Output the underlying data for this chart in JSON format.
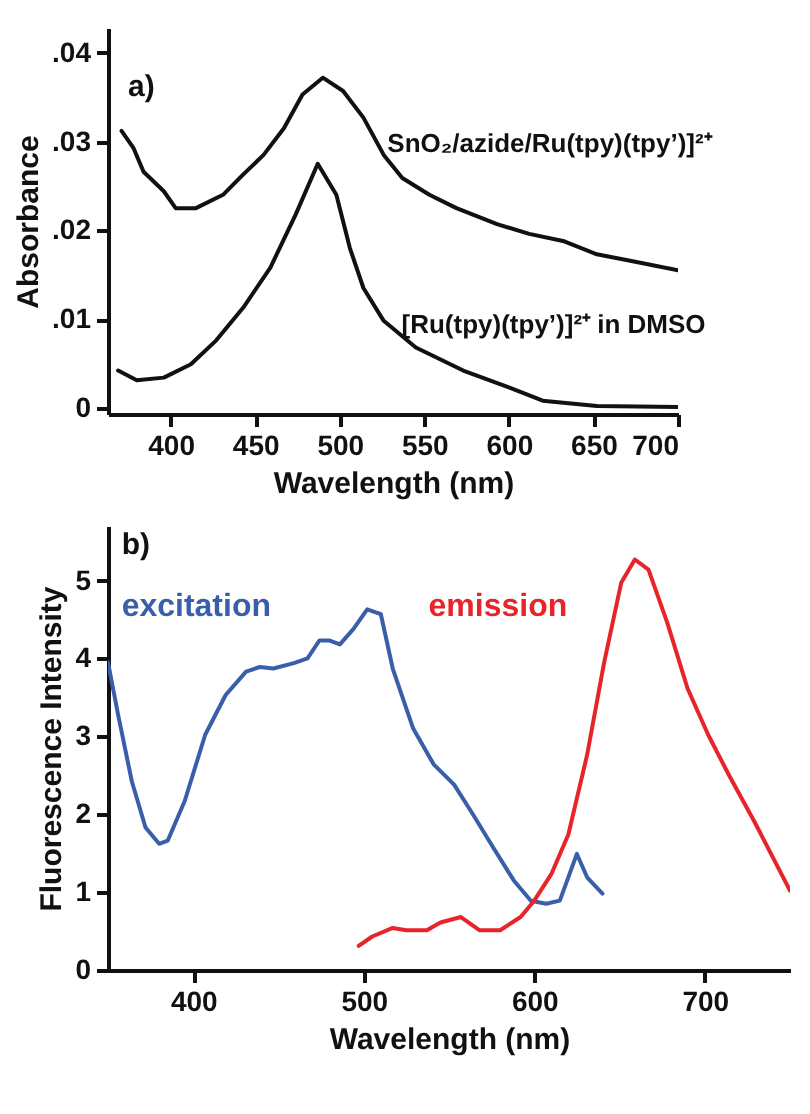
{
  "chart_data": [
    {
      "type": "line",
      "annotations": [
        "a)"
      ],
      "xlabel": "Wavelength (nm)",
      "ylabel": "Absorbance",
      "xlim": [
        363,
        700
      ],
      "ylim": [
        -0.0007,
        0.0428
      ],
      "xticks": [
        400,
        450,
        500,
        550,
        600,
        650,
        700
      ],
      "yticks": [
        {
          "value": 0,
          "label": "0"
        },
        {
          "value": 0.01,
          "label": ".01"
        },
        {
          "value": 0.02,
          "label": ".02"
        },
        {
          "value": 0.03,
          "label": ".03"
        },
        {
          "value": 0.04,
          "label": ".04"
        }
      ],
      "grid": false,
      "legend": false,
      "series": [
        {
          "name": "SnO₂/azide/Ru(tpy)(tpy’)]²⁺",
          "color": "#111111",
          "x": [
            371,
            378,
            384,
            396,
            403,
            415,
            431,
            443,
            455,
            467,
            478,
            490,
            502,
            514,
            526,
            537,
            553,
            569,
            593,
            612,
            632,
            652,
            671,
            700
          ],
          "values": [
            0.0312,
            0.0293,
            0.0266,
            0.0244,
            0.0225,
            0.0225,
            0.024,
            0.0263,
            0.0285,
            0.0315,
            0.0353,
            0.0372,
            0.0357,
            0.0327,
            0.0285,
            0.0259,
            0.024,
            0.0225,
            0.0207,
            0.0196,
            0.0188,
            0.0173,
            0.0166,
            0.0155
          ]
        },
        {
          "name": "[Ru(tpy)(tpy’)]²⁺ in DMSO",
          "color": "#111111",
          "x": [
            369,
            380,
            396,
            412,
            427,
            443,
            459,
            474,
            487,
            498,
            506,
            514,
            526,
            545,
            573,
            600,
            620,
            652,
            700
          ],
          "values": [
            0.0042,
            0.0031,
            0.0034,
            0.0049,
            0.0076,
            0.0113,
            0.0158,
            0.0218,
            0.0275,
            0.024,
            0.018,
            0.0135,
            0.0098,
            0.0068,
            0.0042,
            0.0023,
            0.0008,
            0.0002,
            0.0001
          ]
        }
      ]
    },
    {
      "type": "line",
      "annotations": [
        "b)"
      ],
      "xlabel": "Wavelength (nm)",
      "ylabel": "Fluorescence Intensity",
      "xlim": [
        350,
        750
      ],
      "ylim": [
        0,
        5.7
      ],
      "xticks": [
        400,
        500,
        600,
        700
      ],
      "yticks": [
        0,
        1,
        2,
        3,
        4,
        5
      ],
      "grid": false,
      "legend": false,
      "series": [
        {
          "name": "excitation",
          "color": "#3a5faa",
          "x": [
            350,
            356,
            364,
            372,
            380,
            385,
            395,
            407,
            419,
            431,
            439,
            447,
            459,
            467,
            474,
            480,
            486,
            494,
            502,
            510,
            517,
            529,
            541,
            553,
            564,
            576,
            588,
            598,
            607,
            615,
            625,
            631,
            640
          ],
          "values": [
            3.95,
            3.27,
            2.42,
            1.83,
            1.62,
            1.66,
            2.17,
            3.02,
            3.53,
            3.83,
            3.89,
            3.87,
            3.94,
            4.0,
            4.23,
            4.23,
            4.18,
            4.38,
            4.63,
            4.57,
            3.87,
            3.1,
            2.64,
            2.38,
            2.0,
            1.57,
            1.15,
            0.89,
            0.85,
            0.89,
            1.49,
            1.19,
            0.98
          ]
        },
        {
          "name": "emission",
          "color": "#e8242b",
          "x": [
            497,
            505,
            517,
            525,
            537,
            545,
            557,
            568,
            580,
            592,
            600,
            610,
            620,
            631,
            641,
            651,
            659,
            667,
            678,
            690,
            702,
            714,
            729,
            750
          ],
          "values": [
            0.31,
            0.43,
            0.54,
            0.51,
            0.51,
            0.61,
            0.68,
            0.51,
            0.51,
            0.68,
            0.89,
            1.23,
            1.74,
            2.76,
            3.95,
            4.97,
            5.27,
            5.14,
            4.46,
            3.61,
            3.02,
            2.51,
            1.91,
            1.02
          ]
        }
      ]
    }
  ]
}
